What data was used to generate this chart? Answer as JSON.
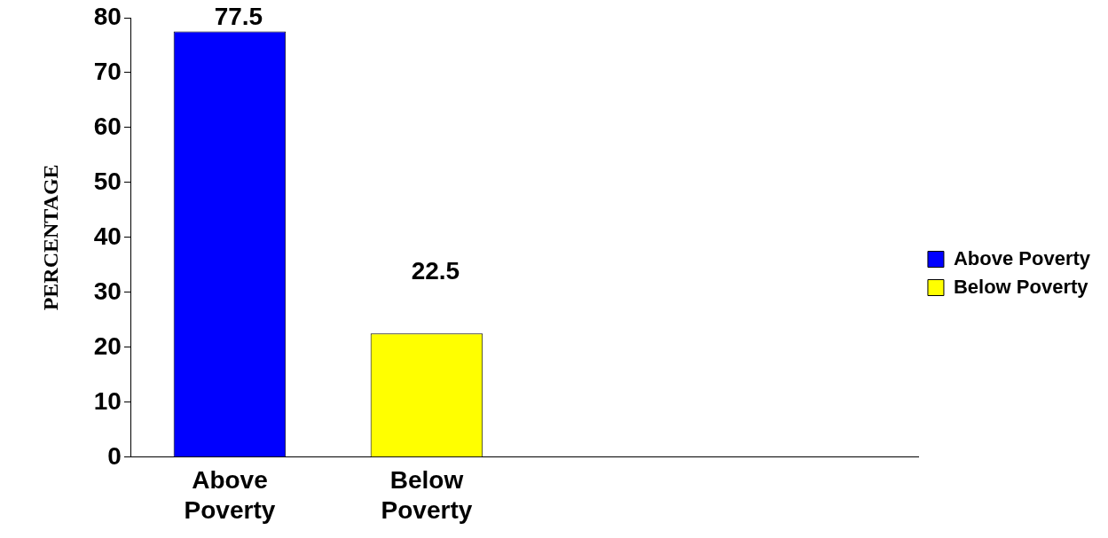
{
  "chart_data": {
    "type": "bar",
    "ylabel": "PERCENTAGE",
    "categories": [
      "Above Poverty",
      "Below Poverty",
      null,
      null
    ],
    "series": [
      {
        "name": "Above Poverty",
        "color": "#0000ff",
        "values": [
          77.5,
          null,
          null,
          null
        ]
      },
      {
        "name": "Below Poverty",
        "color": "#ffff00",
        "values": [
          null,
          22.5,
          null,
          null
        ]
      }
    ],
    "ylim": [
      0,
      80
    ],
    "yticks": [
      0,
      10,
      20,
      30,
      40,
      50,
      60,
      70,
      80
    ],
    "grid": false,
    "legend": "right",
    "data_labels": true
  }
}
